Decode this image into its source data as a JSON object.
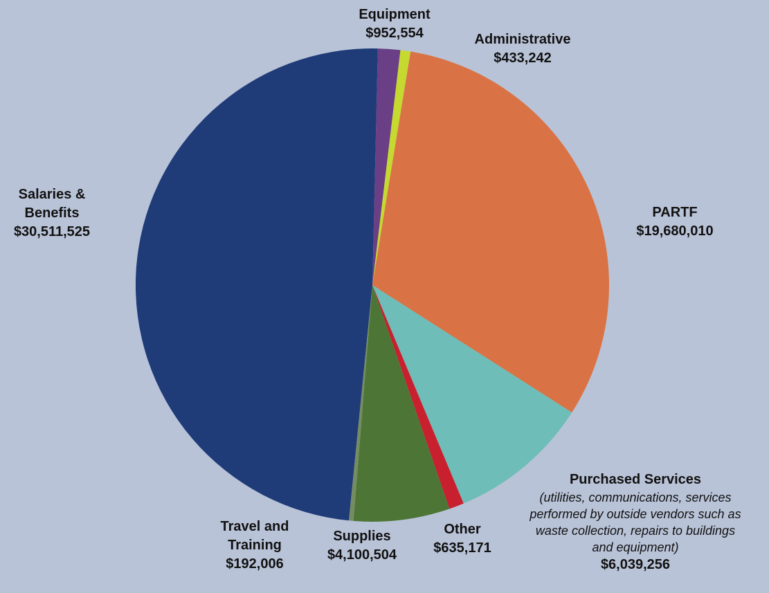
{
  "chart_data": {
    "type": "pie",
    "colors": [
      "#1f3b78",
      "#6a3f86",
      "#c5d930",
      "#d97345",
      "#6fbdb8",
      "#c8202e",
      "#4d7636",
      "#758c62"
    ],
    "slices": [
      {
        "name": "Salaries & Benefits",
        "name_lines": [
          "Salaries &",
          "Benefits"
        ],
        "value": 30511525,
        "value_label": "$30,511,525"
      },
      {
        "name": "Equipment",
        "name_lines": [
          "Equipment"
        ],
        "value": 952554,
        "value_label": "$952,554"
      },
      {
        "name": "Administrative",
        "name_lines": [
          "Administrative"
        ],
        "value": 433242,
        "value_label": "$433,242"
      },
      {
        "name": "PARTF",
        "name_lines": [
          "PARTF"
        ],
        "value": 19680010,
        "value_label": "$19,680,010"
      },
      {
        "name": "Purchased Services",
        "name_lines": [
          "Purchased Services"
        ],
        "description_lines": [
          "(utilities, communications, services",
          "performed by outside vendors such as",
          "waste collection,  repairs to buildings",
          "and equipment)"
        ],
        "value": 6039256,
        "value_label": "$6,039,256"
      },
      {
        "name": "Other",
        "name_lines": [
          "Other"
        ],
        "value": 635171,
        "value_label": "$635,171"
      },
      {
        "name": "Supplies",
        "name_lines": [
          "Supplies"
        ],
        "value": 4100504,
        "value_label": "$4,100,504"
      },
      {
        "name": "Travel and Training",
        "name_lines": [
          "Travel and",
          "Training"
        ],
        "value": 192006,
        "value_label": "$192,006"
      }
    ]
  }
}
